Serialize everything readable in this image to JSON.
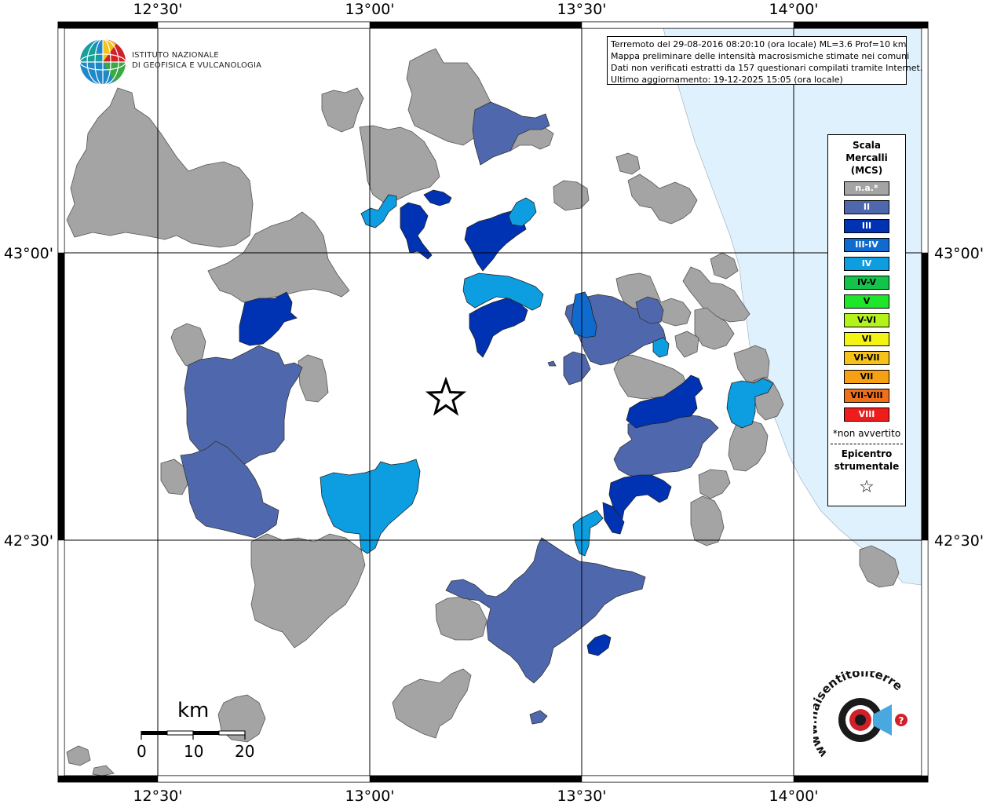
{
  "map": {
    "lon_top_labels": [
      "12°30'",
      "13°00'",
      "13°30'",
      "14°00'"
    ],
    "lon_bottom_labels": [
      "12°30'",
      "13°00'",
      "13°30'",
      "14°00'"
    ],
    "lat_left_labels": [
      "43°00'",
      "42°30'"
    ],
    "lat_right_labels": [
      "43°00'",
      "42°30'"
    ],
    "colors": {
      "na": "#a4a4a4",
      "II": "#4f68ad",
      "III": "#0033b3",
      "III-IV": "#0f6cce",
      "IV": "#0d9ee2",
      "sea": "#dff1fd",
      "land": "#ffffff"
    }
  },
  "info": {
    "line1": "Terremoto del 29-08-2016 08:20:10 (ora locale) ML=3.6 Prof=10 km",
    "line2": "Mappa preliminare delle intensità macrosismiche stimate nei comuni",
    "line3": "Dati non verificati estratti da 157 questionari compilati tramite Internet.",
    "line4": "Ultimo aggiornamento: 19-12-2025 15:05 (ora locale)"
  },
  "legend": {
    "title_line1": "Scala",
    "title_line2": "Mercalli",
    "title_line3": "(MCS)",
    "items": [
      {
        "label": "n.a.*",
        "color": "#a4a4a4",
        "text_color": "#ffffff"
      },
      {
        "label": "II",
        "color": "#4f68ad",
        "text_color": "#ffffff"
      },
      {
        "label": "III",
        "color": "#0033b3",
        "text_color": "#ffffff"
      },
      {
        "label": "III-IV",
        "color": "#0f6cce",
        "text_color": "#ffffff"
      },
      {
        "label": "IV",
        "color": "#0d9ee2",
        "text_color": "#ffffff"
      },
      {
        "label": "IV-V",
        "color": "#13c34a",
        "text_color": "#000000"
      },
      {
        "label": "V",
        "color": "#1fe62a",
        "text_color": "#000000"
      },
      {
        "label": "V-VI",
        "color": "#b3f21b",
        "text_color": "#000000"
      },
      {
        "label": "VI",
        "color": "#f3f316",
        "text_color": "#000000"
      },
      {
        "label": "VI-VII",
        "color": "#f6c219",
        "text_color": "#000000"
      },
      {
        "label": "VII",
        "color": "#f5a113",
        "text_color": "#000000"
      },
      {
        "label": "VII-VIII",
        "color": "#f0701a",
        "text_color": "#000000"
      },
      {
        "label": "VIII",
        "color": "#ee1c1c",
        "text_color": "#ffffff"
      }
    ],
    "note": "*non avvertito",
    "epicenter_line1": "Epicentro",
    "epicenter_line2": "strumentale",
    "epicenter_symbol": "☆"
  },
  "logo_ingv": {
    "line1": "ISTITUTO NAZIONALE",
    "line2": "DI GEOFISICA E VULCANOLOGIA"
  },
  "logo_hsit": {
    "text": "www.haisentitoilterremoto.it"
  },
  "scalebar": {
    "unit": "km",
    "labels": [
      "0",
      "10",
      "20"
    ]
  }
}
